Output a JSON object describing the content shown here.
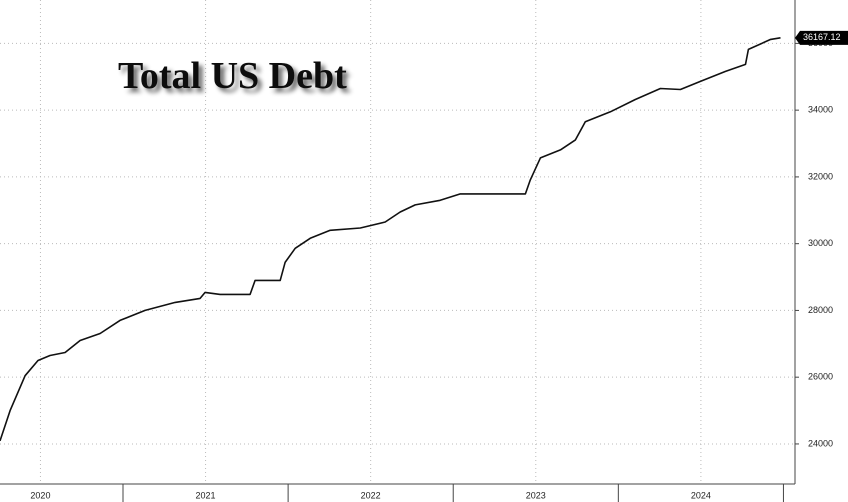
{
  "chart_data": {
    "type": "line",
    "title": "Total US Debt",
    "x": [
      2020.255,
      2020.316,
      2020.407,
      2020.485,
      2020.558,
      2020.649,
      2020.74,
      2020.861,
      2020.982,
      2021.134,
      2021.316,
      2021.467,
      2021.497,
      2021.588,
      2021.77,
      2021.8,
      2021.952,
      2021.982,
      2022.043,
      2022.134,
      2022.255,
      2022.437,
      2022.588,
      2022.679,
      2022.77,
      2022.921,
      2023.043,
      2023.437,
      2023.467,
      2023.528,
      2023.649,
      2023.74,
      2023.8,
      2023.952,
      2024.103,
      2024.255,
      2024.376,
      2024.497,
      2024.649,
      2024.77,
      2024.788,
      2024.922,
      2024.982
    ],
    "series": [
      {
        "name": "Total US Debt",
        "color": "#111111",
        "values": [
          24090,
          25000,
          26045,
          26500,
          26650,
          26740,
          27100,
          27310,
          27700,
          28000,
          28240,
          28360,
          28540,
          28480,
          28480,
          28900,
          28900,
          29440,
          29860,
          30160,
          30400,
          30470,
          30650,
          30950,
          31160,
          31300,
          31490,
          31490,
          31910,
          32570,
          32810,
          33110,
          33650,
          33950,
          34320,
          34650,
          34620,
          34860,
          35160,
          35370,
          35820,
          36120,
          36167.12
        ],
        "last_value_label": "36167.12"
      }
    ],
    "xlim": [
      2020.255,
      2025.07
    ],
    "xticks": [
      {
        "value": 2020.5,
        "label": "2020"
      },
      {
        "value": 2021.5,
        "label": "2021"
      },
      {
        "value": 2022.5,
        "label": "2022"
      },
      {
        "value": 2023.5,
        "label": "2023"
      },
      {
        "value": 2024.5,
        "label": "2024"
      }
    ],
    "ylim": [
      22800,
      37300
    ],
    "yticks": [
      24000,
      26000,
      28000,
      30000,
      32000,
      34000,
      36000
    ],
    "grid": true
  }
}
